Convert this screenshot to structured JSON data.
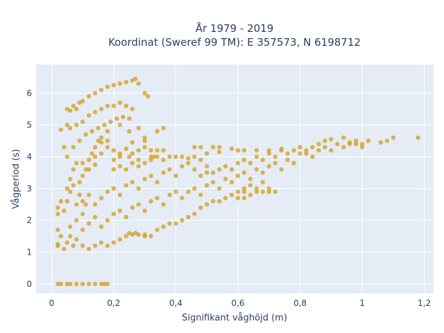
{
  "chart_data": {
    "type": "scatter",
    "title_line1": "År 1979 - 2019",
    "title_line2": "Koordinat (Sweref 99 TM): E 357573, N 6198712",
    "xlabel": "Signifikant våghöjd (m)",
    "ylabel": "Vågperiod (s)",
    "xlim": [
      -0.05,
      1.23
    ],
    "ylim": [
      -0.3,
      6.9
    ],
    "x_ticks": [
      0,
      0.2,
      0.4,
      0.6,
      0.8,
      1,
      1.2
    ],
    "x_tick_labels": [
      "0",
      "0,2",
      "0,4",
      "0,6",
      "0,8",
      "1",
      "1,2"
    ],
    "y_ticks": [
      0,
      1,
      2,
      3,
      4,
      5,
      6
    ],
    "y_tick_labels": [
      "0",
      "1",
      "2",
      "3",
      "4",
      "5",
      "6"
    ],
    "grid": true,
    "marker_color": "#d4a21f",
    "background_color": "#e5ecf6",
    "series": [
      {
        "points": [
          [
            0.02,
            0.0
          ],
          [
            0.03,
            0.0
          ],
          [
            0.05,
            0.0
          ],
          [
            0.06,
            0.0
          ],
          [
            0.08,
            0.0
          ],
          [
            0.1,
            0.0
          ],
          [
            0.12,
            0.0
          ],
          [
            0.14,
            0.0
          ],
          [
            0.16,
            0.0
          ],
          [
            0.17,
            0.0
          ],
          [
            0.18,
            0.0
          ],
          [
            0.02,
            1.2
          ],
          [
            0.02,
            1.25
          ],
          [
            0.03,
            1.5
          ],
          [
            0.02,
            1.7
          ],
          [
            0.02,
            2.2
          ],
          [
            0.02,
            2.4
          ],
          [
            0.03,
            2.6
          ],
          [
            0.03,
            4.85
          ],
          [
            0.04,
            4.3
          ],
          [
            0.05,
            5.0
          ],
          [
            0.05,
            5.5
          ],
          [
            0.06,
            5.45
          ],
          [
            0.07,
            5.6
          ],
          [
            0.08,
            5.5
          ],
          [
            0.09,
            5.7
          ],
          [
            0.1,
            5.75
          ],
          [
            0.12,
            5.9
          ],
          [
            0.14,
            6.0
          ],
          [
            0.16,
            6.1
          ],
          [
            0.18,
            6.2
          ],
          [
            0.2,
            6.25
          ],
          [
            0.22,
            6.3
          ],
          [
            0.24,
            6.35
          ],
          [
            0.26,
            6.4
          ],
          [
            0.27,
            6.45
          ],
          [
            0.28,
            6.3
          ],
          [
            0.3,
            6.0
          ],
          [
            0.31,
            5.9
          ],
          [
            0.06,
            4.9
          ],
          [
            0.08,
            5.0
          ],
          [
            0.1,
            5.1
          ],
          [
            0.12,
            5.3
          ],
          [
            0.14,
            5.4
          ],
          [
            0.16,
            5.5
          ],
          [
            0.18,
            5.6
          ],
          [
            0.2,
            5.6
          ],
          [
            0.22,
            5.7
          ],
          [
            0.24,
            5.6
          ],
          [
            0.26,
            5.5
          ],
          [
            0.05,
            4.0
          ],
          [
            0.07,
            4.3
          ],
          [
            0.09,
            4.5
          ],
          [
            0.11,
            4.7
          ],
          [
            0.13,
            4.8
          ],
          [
            0.15,
            4.9
          ],
          [
            0.17,
            5.0
          ],
          [
            0.19,
            5.1
          ],
          [
            0.21,
            5.2
          ],
          [
            0.23,
            5.25
          ],
          [
            0.25,
            5.2
          ],
          [
            0.05,
            3.0
          ],
          [
            0.06,
            3.3
          ],
          [
            0.07,
            3.6
          ],
          [
            0.08,
            3.8
          ],
          [
            0.09,
            3.2
          ],
          [
            0.1,
            3.4
          ],
          [
            0.11,
            3.6
          ],
          [
            0.12,
            3.9
          ],
          [
            0.13,
            4.1
          ],
          [
            0.14,
            4.3
          ],
          [
            0.15,
            4.5
          ],
          [
            0.16,
            4.6
          ],
          [
            0.18,
            4.8
          ],
          [
            0.04,
            2.3
          ],
          [
            0.05,
            2.6
          ],
          [
            0.06,
            2.9
          ],
          [
            0.07,
            3.1
          ],
          [
            0.08,
            2.5
          ],
          [
            0.09,
            2.8
          ],
          [
            0.1,
            2.2
          ],
          [
            0.11,
            2.5
          ],
          [
            0.04,
            1.1
          ],
          [
            0.05,
            1.3
          ],
          [
            0.06,
            1.5
          ],
          [
            0.07,
            1.2
          ],
          [
            0.08,
            1.4
          ],
          [
            0.1,
            1.2
          ],
          [
            0.12,
            1.1
          ],
          [
            0.14,
            1.2
          ],
          [
            0.16,
            1.3
          ],
          [
            0.18,
            1.2
          ],
          [
            0.2,
            1.3
          ],
          [
            0.22,
            1.4
          ],
          [
            0.24,
            1.5
          ],
          [
            0.26,
            1.55
          ],
          [
            0.28,
            1.55
          ],
          [
            0.3,
            1.5
          ],
          [
            0.06,
            1.8
          ],
          [
            0.08,
            2.0
          ],
          [
            0.1,
            1.7
          ],
          [
            0.12,
            1.9
          ],
          [
            0.14,
            2.1
          ],
          [
            0.16,
            1.8
          ],
          [
            0.18,
            2.0
          ],
          [
            0.2,
            2.2
          ],
          [
            0.22,
            2.3
          ],
          [
            0.24,
            2.1
          ],
          [
            0.26,
            2.4
          ],
          [
            0.28,
            2.5
          ],
          [
            0.3,
            2.3
          ],
          [
            0.32,
            2.6
          ],
          [
            0.34,
            2.7
          ],
          [
            0.36,
            2.5
          ],
          [
            0.38,
            2.8
          ],
          [
            0.4,
            2.9
          ],
          [
            0.1,
            2.6
          ],
          [
            0.12,
            2.8
          ],
          [
            0.14,
            2.5
          ],
          [
            0.16,
            2.7
          ],
          [
            0.18,
            2.9
          ],
          [
            0.2,
            3.0
          ],
          [
            0.22,
            2.8
          ],
          [
            0.24,
            3.1
          ],
          [
            0.26,
            3.2
          ],
          [
            0.28,
            3.0
          ],
          [
            0.3,
            3.3
          ],
          [
            0.32,
            3.4
          ],
          [
            0.34,
            3.2
          ],
          [
            0.36,
            3.5
          ],
          [
            0.38,
            3.6
          ],
          [
            0.4,
            3.4
          ],
          [
            0.42,
            3.7
          ],
          [
            0.44,
            3.8
          ],
          [
            0.46,
            3.6
          ],
          [
            0.48,
            3.9
          ],
          [
            0.5,
            3.7
          ],
          [
            0.2,
            3.6
          ],
          [
            0.22,
            3.7
          ],
          [
            0.24,
            3.6
          ],
          [
            0.26,
            3.8
          ],
          [
            0.28,
            3.7
          ],
          [
            0.3,
            3.8
          ],
          [
            0.32,
            3.9
          ],
          [
            0.34,
            4.0
          ],
          [
            0.36,
            3.9
          ],
          [
            0.38,
            4.0
          ],
          [
            0.4,
            4.0
          ],
          [
            0.42,
            4.0
          ],
          [
            0.44,
            3.95
          ],
          [
            0.46,
            4.0
          ],
          [
            0.5,
            4.1
          ],
          [
            0.54,
            4.15
          ],
          [
            0.42,
            2.7
          ],
          [
            0.44,
            2.9
          ],
          [
            0.46,
            3.0
          ],
          [
            0.48,
            2.8
          ],
          [
            0.5,
            3.1
          ],
          [
            0.52,
            3.2
          ],
          [
            0.54,
            3.0
          ],
          [
            0.56,
            3.3
          ],
          [
            0.58,
            3.2
          ],
          [
            0.6,
            3.4
          ],
          [
            0.62,
            3.5
          ],
          [
            0.64,
            3.3
          ],
          [
            0.66,
            3.6
          ],
          [
            0.68,
            3.5
          ],
          [
            0.7,
            3.7
          ],
          [
            0.72,
            3.8
          ],
          [
            0.74,
            3.6
          ],
          [
            0.76,
            3.9
          ],
          [
            0.78,
            3.8
          ],
          [
            0.52,
            3.5
          ],
          [
            0.54,
            3.6
          ],
          [
            0.56,
            3.7
          ],
          [
            0.58,
            3.6
          ],
          [
            0.6,
            3.8
          ],
          [
            0.62,
            3.9
          ],
          [
            0.64,
            3.8
          ],
          [
            0.66,
            4.0
          ],
          [
            0.68,
            3.9
          ],
          [
            0.7,
            4.1
          ],
          [
            0.72,
            4.0
          ],
          [
            0.74,
            4.2
          ],
          [
            0.76,
            4.1
          ],
          [
            0.78,
            4.2
          ],
          [
            0.8,
            4.1
          ],
          [
            0.82,
            4.2
          ],
          [
            0.84,
            4.3
          ],
          [
            0.6,
            2.9
          ],
          [
            0.62,
            3.0
          ],
          [
            0.64,
            3.1
          ],
          [
            0.66,
            2.9
          ],
          [
            0.68,
            3.2
          ],
          [
            0.7,
            2.9
          ],
          [
            0.64,
            2.8
          ],
          [
            0.8,
            4.3
          ],
          [
            0.82,
            4.1
          ],
          [
            0.84,
            4.0
          ],
          [
            0.86,
            4.2
          ],
          [
            0.88,
            4.3
          ],
          [
            0.9,
            4.2
          ],
          [
            0.92,
            4.4
          ],
          [
            0.94,
            4.3
          ],
          [
            0.96,
            4.4
          ],
          [
            0.98,
            4.5
          ],
          [
            1.0,
            4.4
          ],
          [
            1.02,
            4.5
          ],
          [
            1.06,
            4.45
          ],
          [
            1.08,
            4.5
          ],
          [
            1.1,
            4.6
          ],
          [
            1.18,
            4.6
          ],
          [
            0.86,
            4.4
          ],
          [
            0.88,
            4.5
          ],
          [
            0.9,
            4.55
          ],
          [
            0.94,
            4.6
          ],
          [
            0.96,
            4.45
          ],
          [
            0.98,
            4.4
          ],
          [
            1.0,
            4.3
          ],
          [
            0.18,
            4.3
          ],
          [
            0.2,
            4.2
          ],
          [
            0.22,
            4.1
          ],
          [
            0.24,
            4.25
          ],
          [
            0.26,
            4.1
          ],
          [
            0.28,
            4.2
          ],
          [
            0.3,
            4.3
          ],
          [
            0.32,
            4.2
          ],
          [
            0.16,
            4.1
          ],
          [
            0.14,
            4.0
          ],
          [
            0.1,
            3.8
          ],
          [
            0.12,
            3.6
          ],
          [
            0.14,
            3.75
          ],
          [
            0.2,
            3.9
          ],
          [
            0.22,
            4.0
          ],
          [
            0.25,
            4.0
          ],
          [
            0.28,
            3.9
          ],
          [
            0.32,
            4.0
          ],
          [
            0.22,
            5.0
          ],
          [
            0.25,
            4.8
          ],
          [
            0.28,
            4.9
          ],
          [
            0.3,
            4.6
          ],
          [
            0.34,
            4.8
          ],
          [
            0.36,
            4.9
          ],
          [
            0.33,
            4.0
          ],
          [
            0.34,
            4.2
          ],
          [
            0.36,
            4.2
          ],
          [
            0.16,
            4.45
          ],
          [
            0.18,
            4.5
          ],
          [
            0.26,
            4.45
          ],
          [
            0.3,
            4.5
          ],
          [
            0.46,
            4.3
          ],
          [
            0.48,
            4.3
          ],
          [
            0.52,
            4.3
          ],
          [
            0.54,
            4.3
          ],
          [
            0.58,
            4.25
          ],
          [
            0.6,
            4.2
          ],
          [
            0.62,
            4.2
          ],
          [
            0.66,
            4.2
          ],
          [
            0.7,
            4.2
          ],
          [
            0.74,
            4.25
          ],
          [
            0.5,
            3.5
          ],
          [
            0.48,
            3.4
          ],
          [
            0.25,
            1.6
          ],
          [
            0.27,
            1.6
          ],
          [
            0.3,
            1.55
          ],
          [
            0.32,
            1.5
          ],
          [
            0.34,
            1.7
          ],
          [
            0.36,
            1.8
          ],
          [
            0.38,
            1.9
          ],
          [
            0.4,
            1.9
          ],
          [
            0.42,
            2.0
          ],
          [
            0.44,
            2.1
          ],
          [
            0.46,
            2.2
          ],
          [
            0.48,
            2.4
          ],
          [
            0.5,
            2.5
          ],
          [
            0.52,
            2.6
          ],
          [
            0.54,
            2.6
          ],
          [
            0.56,
            2.7
          ],
          [
            0.58,
            2.8
          ],
          [
            0.6,
            2.7
          ],
          [
            0.62,
            2.9
          ],
          [
            0.68,
            2.9
          ],
          [
            0.7,
            3.0
          ],
          [
            0.72,
            2.9
          ],
          [
            0.66,
            3.0
          ],
          [
            0.62,
            2.7
          ]
        ]
      }
    ]
  }
}
